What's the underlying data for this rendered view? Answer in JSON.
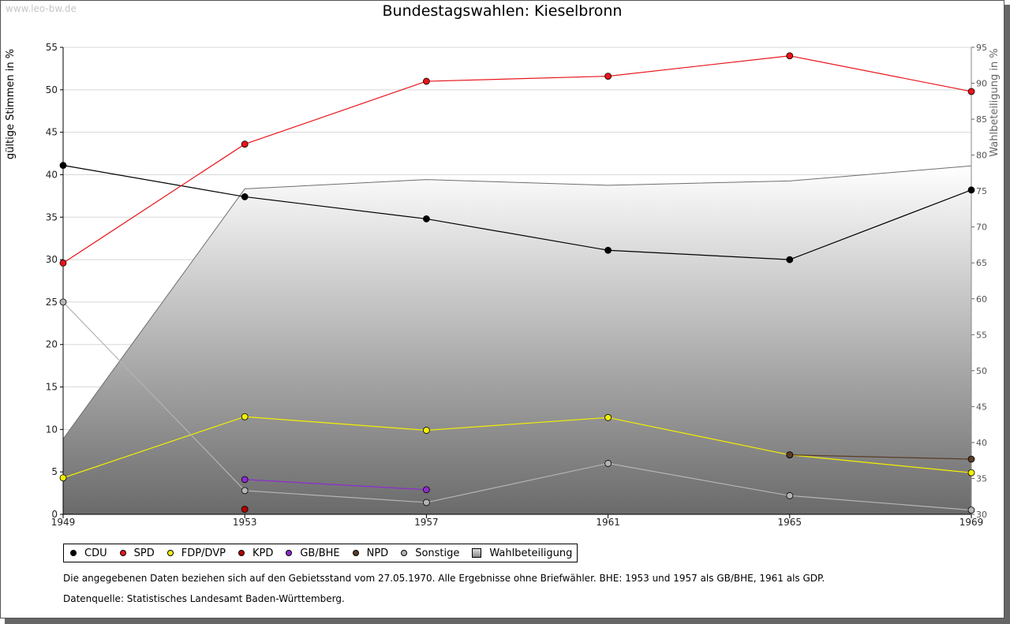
{
  "watermark": "www.leo-bw.de",
  "chart_data": {
    "type": "line",
    "title": "Bundestagswahlen: Kieselbronn",
    "xlabel": "",
    "ylabel": "gültige Stimmen in %",
    "y2label": "Wahlbeteiligung in %",
    "ylim": [
      0,
      55
    ],
    "y2lim": [
      30,
      95
    ],
    "yticks": [
      0,
      5,
      10,
      15,
      20,
      25,
      30,
      35,
      40,
      45,
      50,
      55
    ],
    "y2ticks": [
      30,
      35,
      40,
      45,
      50,
      55,
      60,
      65,
      70,
      75,
      80,
      85,
      90,
      95
    ],
    "categories": [
      "1949",
      "1953",
      "1957",
      "1961",
      "1965",
      "1969"
    ],
    "series": [
      {
        "name": "CDU",
        "color": "#000000",
        "values": [
          41.1,
          37.4,
          34.8,
          31.1,
          30.0,
          38.2
        ]
      },
      {
        "name": "SPD",
        "color": "#e8141b",
        "values": [
          29.6,
          43.6,
          51.0,
          51.6,
          54.0,
          49.8
        ]
      },
      {
        "name": "FDP/DVP",
        "color": "#f4f000",
        "values": [
          4.3,
          11.5,
          9.9,
          11.4,
          7.0,
          4.9
        ]
      },
      {
        "name": "KPD",
        "color": "#b40000",
        "values": [
          null,
          0.6,
          null,
          null,
          null,
          null
        ]
      },
      {
        "name": "GB/BHE",
        "color": "#8e2ccf",
        "values": [
          null,
          4.1,
          2.9,
          null,
          null,
          null
        ]
      },
      {
        "name": "NPD",
        "color": "#5a3c28",
        "values": [
          null,
          null,
          null,
          null,
          7.0,
          6.5
        ]
      },
      {
        "name": "Sonstige",
        "color": "#b4b4b4",
        "values": [
          25.0,
          2.8,
          1.4,
          6.0,
          2.2,
          0.5
        ]
      }
    ],
    "turnout": {
      "name": "Wahlbeteiligung",
      "axis": "right",
      "values": [
        40.5,
        75.3,
        76.6,
        75.8,
        76.4,
        78.5
      ]
    }
  },
  "legend": {
    "items": [
      {
        "label": "CDU",
        "color": "#000000"
      },
      {
        "label": "SPD",
        "color": "#e8141b"
      },
      {
        "label": "FDP/DVP",
        "color": "#f4f000"
      },
      {
        "label": "KPD",
        "color": "#b40000"
      },
      {
        "label": "GB/BHE",
        "color": "#8e2ccf"
      },
      {
        "label": "NPD",
        "color": "#5a3c28"
      },
      {
        "label": "Sonstige",
        "color": "#b4b4b4"
      }
    ],
    "turnout_label": "Wahlbeteiligung"
  },
  "notes": {
    "line1": "Die angegebenen Daten beziehen sich auf den Gebietsstand vom 27.05.1970. Alle Ergebnisse ohne Briefwähler. BHE: 1953 und 1957 als GB/BHE, 1961 als GDP.",
    "line2": "Datenquelle: Statistisches Landesamt Baden-Württemberg."
  }
}
